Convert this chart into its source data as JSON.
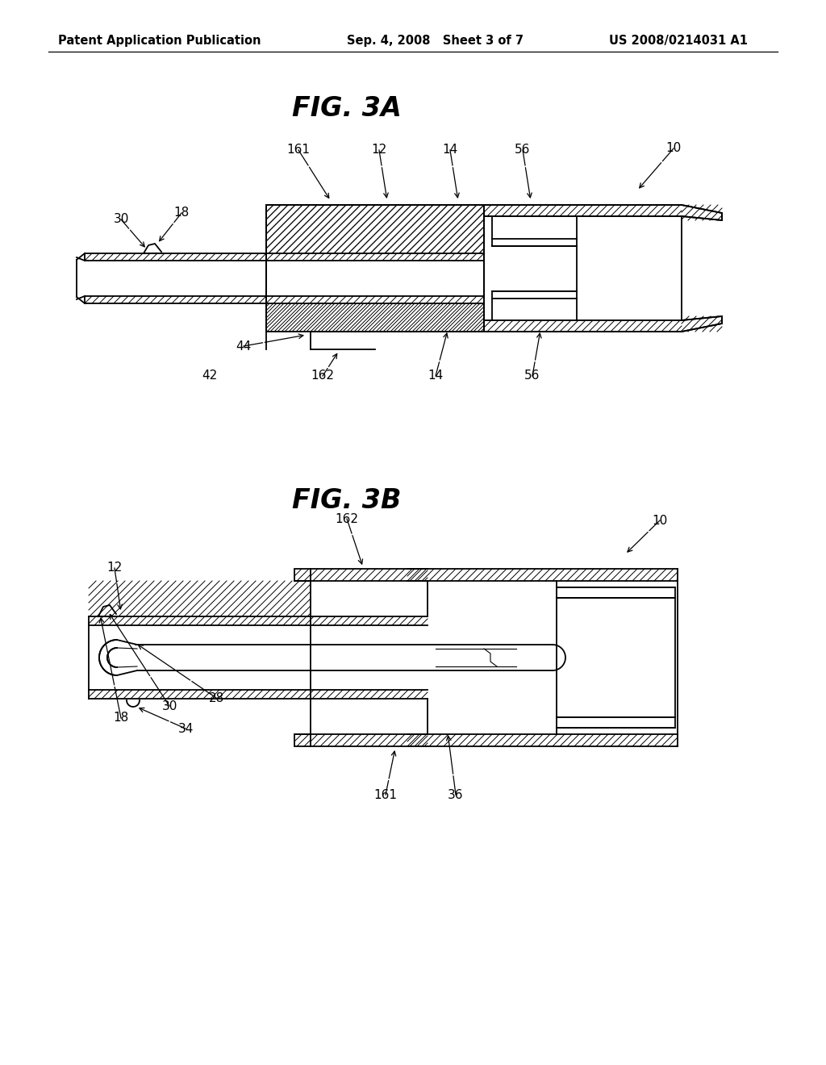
{
  "bg_color": "#ffffff",
  "line_color": "#000000",
  "header_left": "Patent Application Publication",
  "header_center": "Sep. 4, 2008   Sheet 3 of 7",
  "header_right": "US 2008/0214031 A1",
  "header_fontsize": 10.5,
  "fig3a_title": "FIG. 3A",
  "fig3b_title": "FIG. 3B",
  "title_fontsize": 24,
  "label_fontsize": 11
}
